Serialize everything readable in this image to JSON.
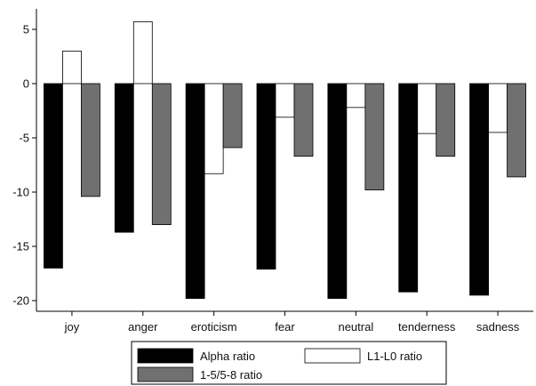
{
  "chart_data": {
    "type": "bar",
    "categories": [
      "joy",
      "anger",
      "eroticism",
      "fear",
      "neutral",
      "tenderness",
      "sadness"
    ],
    "series": [
      {
        "name": "Alpha ratio",
        "color": "#000000",
        "values": [
          -17.0,
          -13.7,
          -19.8,
          -17.1,
          -19.8,
          -19.2,
          -19.5
        ]
      },
      {
        "name": "L1-L0 ratio",
        "color": "#ffffff",
        "values": [
          3.0,
          5.7,
          -8.3,
          -3.1,
          -2.2,
          -4.6,
          -4.5
        ]
      },
      {
        "name": "1-5/5-8 ratio",
        "color": "#707070",
        "values": [
          -10.4,
          -13.0,
          -5.9,
          -6.7,
          -9.8,
          -6.7,
          -8.6
        ]
      }
    ],
    "yticks": [
      "5",
      "0",
      "-5",
      "-10",
      "-15",
      "-20"
    ],
    "ylim": [
      -21,
      7
    ],
    "title": "",
    "xlabel": "",
    "ylabel": "",
    "grid": false,
    "legend_position": "bottom"
  }
}
